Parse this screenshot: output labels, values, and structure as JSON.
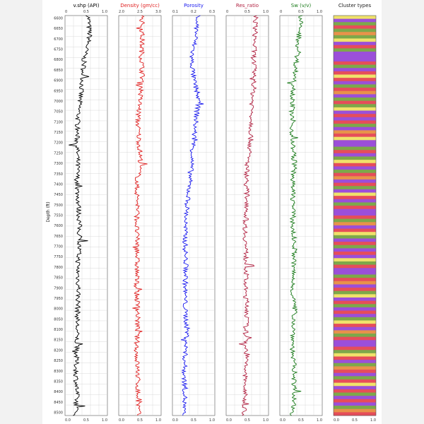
{
  "chart_data": {
    "type": "line",
    "ylabel": "Depth (ft)",
    "depth_ticks": [
      "6600",
      "6650",
      "6700",
      "6750",
      "6800",
      "6850",
      "6900",
      "6950",
      "7000",
      "7050",
      "7100",
      "7150",
      "7200",
      "7250",
      "7300",
      "7350",
      "7400",
      "7450",
      "7500",
      "7550",
      "7600",
      "7650",
      "7700",
      "7750",
      "7800",
      "7850",
      "7900",
      "7950",
      "8000",
      "8050",
      "8100",
      "8150",
      "8200",
      "8250",
      "8300",
      "8350",
      "8400",
      "8450",
      "8500"
    ],
    "ylim": [
      6600,
      8500
    ],
    "invert_y": true,
    "grid": true,
    "tracks": [
      {
        "title": "v.shp (API)",
        "color": "#000000",
        "xlim": [
          0,
          1
        ],
        "xticks": [
          "0.0",
          "0.5",
          "1.0"
        ],
        "top_ticks": [
          "0",
          "0.5",
          "1.0"
        ],
        "depth": [
          6600,
          6700,
          6800,
          6900,
          7000,
          7100,
          7200,
          7300,
          7400,
          7500,
          7600,
          7700,
          7800,
          7900,
          8000,
          8100,
          8200,
          8300,
          8400,
          8500
        ],
        "values": [
          0.55,
          0.58,
          0.45,
          0.42,
          0.35,
          0.3,
          0.28,
          0.3,
          0.28,
          0.32,
          0.34,
          0.33,
          0.3,
          0.32,
          0.3,
          0.28,
          0.27,
          0.26,
          0.28,
          0.25
        ]
      },
      {
        "title": "Density (gm/cc)",
        "color": "#e02020",
        "xlim": [
          0,
          1
        ],
        "xticks": [
          "0.0",
          "0.5",
          "1.0"
        ],
        "top_ticks": [
          "2.0",
          "2.5",
          "3.0"
        ],
        "depth": [
          6600,
          6700,
          6800,
          6900,
          7000,
          7100,
          7200,
          7300,
          7400,
          7500,
          7600,
          7700,
          7800,
          7900,
          8000,
          8100,
          8200,
          8300,
          8400,
          8500
        ],
        "values": [
          0.55,
          0.55,
          0.54,
          0.56,
          0.5,
          0.45,
          0.48,
          0.52,
          0.42,
          0.45,
          0.42,
          0.44,
          0.43,
          0.42,
          0.45,
          0.44,
          0.42,
          0.45,
          0.45,
          0.47
        ]
      },
      {
        "title": "Porosity",
        "color": "#1a1aee",
        "xlim": [
          0,
          1
        ],
        "xticks": [
          "0.0",
          "0.5",
          "1.0"
        ],
        "top_ticks": [
          "0.1",
          "0.2",
          "0.3"
        ],
        "depth": [
          6600,
          6700,
          6800,
          6900,
          7000,
          7100,
          7200,
          7300,
          7400,
          7500,
          7600,
          7700,
          7800,
          7900,
          8000,
          8100,
          8200,
          8300,
          8400,
          8500
        ],
        "values": [
          0.6,
          0.55,
          0.45,
          0.5,
          0.62,
          0.55,
          0.5,
          0.45,
          0.4,
          0.35,
          0.3,
          0.3,
          0.32,
          0.3,
          0.3,
          0.35,
          0.3,
          0.28,
          0.3,
          0.25
        ]
      },
      {
        "title": "Res_ratio",
        "color": "#b02040",
        "xlim": [
          0,
          1
        ],
        "xticks": [
          "0.0",
          "0.5",
          "1.0"
        ],
        "top_ticks": [
          "0",
          "0.5",
          "1.0"
        ],
        "depth": [
          6600,
          6700,
          6800,
          6900,
          7000,
          7100,
          7200,
          7300,
          7400,
          7500,
          7600,
          7700,
          7800,
          7900,
          8000,
          8100,
          8200,
          8300,
          8400,
          8500
        ],
        "values": [
          0.7,
          0.68,
          0.65,
          0.67,
          0.62,
          0.6,
          0.58,
          0.5,
          0.48,
          0.5,
          0.45,
          0.46,
          0.48,
          0.45,
          0.5,
          0.46,
          0.48,
          0.45,
          0.44,
          0.43
        ]
      },
      {
        "title": "Sw (v/v)",
        "color": "#1a7a1a",
        "xlim": [
          0,
          1
        ],
        "xticks": [
          "0.0",
          "0.5",
          "1.0"
        ],
        "top_ticks": [
          "0",
          "0.5",
          "1.0"
        ],
        "depth": [
          6600,
          6700,
          6800,
          6900,
          7000,
          7100,
          7200,
          7300,
          7400,
          7500,
          7600,
          7700,
          7800,
          7900,
          8000,
          8100,
          8200,
          8300,
          8400,
          8500
        ],
        "values": [
          0.5,
          0.45,
          0.4,
          0.35,
          0.3,
          0.28,
          0.3,
          0.35,
          0.3,
          0.32,
          0.3,
          0.35,
          0.32,
          0.3,
          0.35,
          0.32,
          0.3,
          0.35,
          0.33,
          0.3
        ]
      }
    ],
    "cluster_track": {
      "title": "Cluster types",
      "xticks": [
        "0.0",
        "0.5",
        "1.0"
      ],
      "palette": {
        "purple": "#9b4fd9",
        "green": "#7da84a",
        "red": "#e64d5a",
        "yellow": "#f0e26b",
        "orange": "#e8924a",
        "blue": "#4f7fd9"
      },
      "bands": [
        "yellow",
        "purple",
        "green",
        "red",
        "green",
        "orange",
        "green",
        "yellow",
        "purple",
        "red",
        "green",
        "purple",
        "purple",
        "purple",
        "red",
        "green",
        "purple",
        "red",
        "yellow",
        "red",
        "purple",
        "green",
        "red",
        "orange",
        "purple",
        "green",
        "red",
        "green",
        "yellow",
        "purple",
        "red",
        "purple",
        "red",
        "green",
        "purple",
        "orange",
        "red",
        "yellow",
        "purple",
        "purple",
        "green",
        "red",
        "purple",
        "green",
        "yellow",
        "red",
        "purple",
        "green",
        "red",
        "orange",
        "purple",
        "red",
        "green",
        "purple",
        "yellow",
        "red",
        "purple",
        "green",
        "red",
        "purple",
        "purple",
        "red",
        "green",
        "orange",
        "purple",
        "red",
        "yellow",
        "green",
        "purple",
        "red",
        "green",
        "purple",
        "red",
        "purple",
        "yellow",
        "green",
        "red",
        "purple",
        "purple",
        "green",
        "red",
        "orange",
        "purple",
        "red",
        "green",
        "yellow",
        "purple",
        "red",
        "green",
        "purple",
        "red",
        "purple",
        "green",
        "yellow",
        "red",
        "purple",
        "orange",
        "green",
        "red",
        "purple",
        "purple",
        "red",
        "green",
        "yellow",
        "red",
        "purple",
        "green",
        "orange",
        "red",
        "purple",
        "green",
        "red",
        "yellow",
        "purple",
        "red",
        "green",
        "purple",
        "red",
        "purple",
        "green",
        "orange",
        "red"
      ]
    }
  }
}
